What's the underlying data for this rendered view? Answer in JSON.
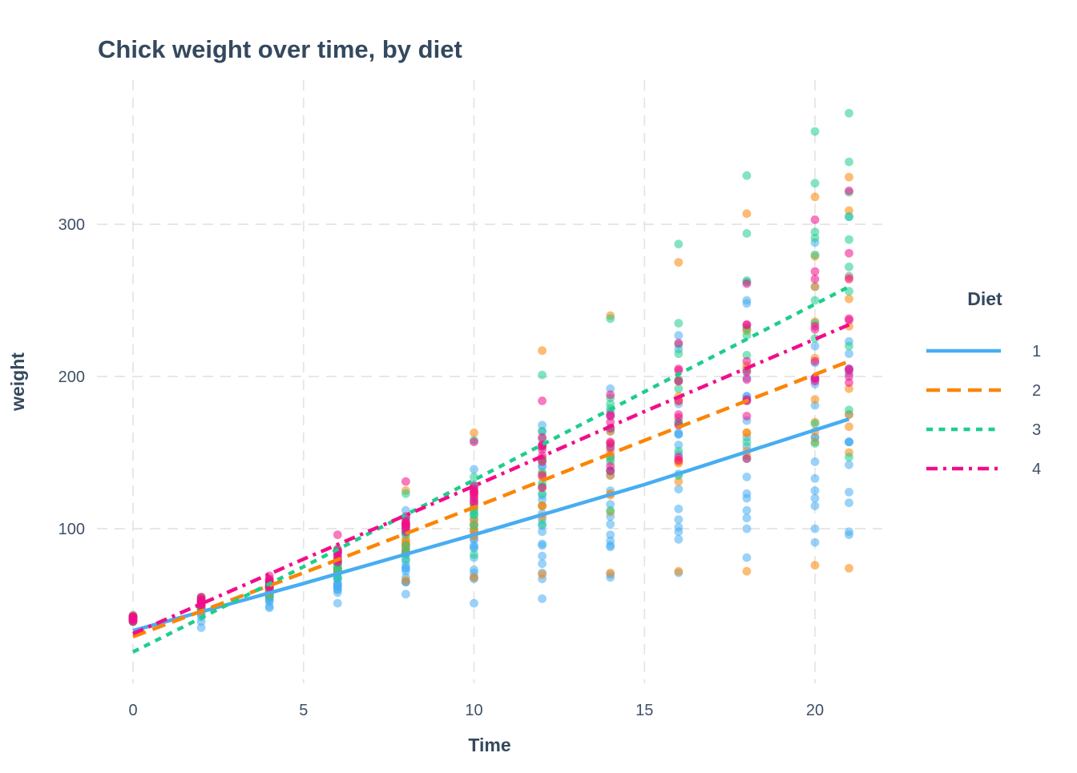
{
  "title": "Chick weight over time, by diet",
  "style": {
    "background": "#FFFFFF",
    "title_color": "#34495E",
    "axis_text_color": "#3F5165",
    "grid_color": "#E4E4E4"
  },
  "x_axis": {
    "label": "Time",
    "ticks": [
      0,
      5,
      10,
      15,
      20
    ]
  },
  "y_axis": {
    "label": "weight",
    "ticks": [
      100,
      200,
      300
    ]
  },
  "legend": {
    "title": "Diet",
    "position": "right"
  },
  "chart_data": {
    "type": "scatter",
    "title": "Chick weight over time, by diet",
    "xlabel": "Time",
    "ylabel": "weight",
    "xlim": [
      -1,
      22
    ],
    "ylim": [
      0,
      394
    ],
    "x_ticks": [
      0,
      5,
      10,
      15,
      20
    ],
    "y_ticks": [
      100,
      200,
      300
    ],
    "grid": "dashed major gridlines only",
    "legend_position": "right",
    "point_alpha": 0.55,
    "times": [
      0,
      2,
      4,
      6,
      8,
      10,
      12,
      14,
      16,
      18,
      20,
      21
    ],
    "series": [
      {
        "name": "1",
        "color": "#47ADF2",
        "linetype": "solid",
        "points_by_chick": [
          [
            42,
            51,
            59,
            64,
            76,
            93,
            106,
            125,
            149,
            171,
            199,
            205
          ],
          [
            40,
            49,
            58,
            72,
            84,
            103,
            122,
            138,
            162,
            187,
            209,
            215
          ],
          [
            43,
            39,
            55,
            67,
            84,
            99,
            115,
            138,
            163,
            187,
            198,
            202
          ],
          [
            42,
            49,
            56,
            67,
            74,
            87,
            102,
            108,
            136,
            154,
            160,
            157
          ],
          [
            41,
            42,
            48,
            60,
            79,
            106,
            141,
            164,
            197,
            199,
            220,
            223
          ],
          [
            41,
            49,
            59,
            74,
            97,
            124,
            141,
            148,
            155,
            160,
            160,
            157
          ],
          [
            41,
            49,
            57,
            71,
            89,
            112,
            146,
            174,
            218,
            250,
            288,
            305
          ],
          [
            42,
            50,
            61,
            71,
            84,
            93,
            110,
            116,
            126,
            134,
            125
          ],
          [
            42,
            51,
            59,
            68,
            85,
            96,
            90,
            92,
            93,
            100,
            100,
            98
          ],
          [
            41,
            44,
            52,
            63,
            74,
            81,
            89,
            96,
            101,
            112,
            120,
            124
          ],
          [
            43,
            51,
            63,
            84,
            112,
            139,
            168,
            177,
            182,
            184,
            181,
            175
          ],
          [
            41,
            49,
            56,
            62,
            72,
            88,
            119,
            135,
            162,
            185,
            195,
            205
          ],
          [
            41,
            48,
            53,
            60,
            65,
            67,
            71,
            70,
            71,
            81,
            91,
            96
          ],
          [
            41,
            49,
            62,
            79,
            101,
            128,
            164,
            192,
            227,
            248,
            259,
            266
          ],
          [
            41,
            49,
            56,
            64,
            68,
            68,
            67,
            68
          ],
          [
            41,
            45,
            49,
            51,
            57,
            51,
            54
          ],
          [
            42,
            51,
            61,
            72,
            83,
            89,
            98,
            103,
            113,
            123,
            133,
            142
          ],
          [
            39,
            35
          ],
          [
            43,
            48,
            55,
            62,
            65,
            71,
            82,
            88,
            106,
            120,
            144,
            157
          ],
          [
            41,
            47,
            54,
            58,
            65,
            73,
            77,
            89,
            98,
            107,
            115,
            117
          ]
        ]
      },
      {
        "name": "2",
        "color": "#FB8504",
        "linetype": "dashed",
        "points_by_chick": [
          [
            40,
            50,
            62,
            86,
            125,
            163,
            217,
            240,
            275,
            307,
            318,
            331
          ],
          [
            41,
            55,
            64,
            77,
            90,
            95,
            108,
            111,
            131,
            148,
            164,
            167
          ],
          [
            43,
            52,
            61,
            73,
            90,
            103,
            127,
            135,
            145,
            163,
            170,
            175
          ],
          [
            42,
            52,
            58,
            74,
            66,
            68,
            70,
            71,
            72,
            72,
            76,
            74
          ],
          [
            40,
            49,
            62,
            78,
            102,
            124,
            146,
            164,
            197,
            231,
            259,
            265
          ],
          [
            42,
            48,
            57,
            74,
            93,
            114,
            136,
            147,
            169,
            205,
            236,
            251
          ],
          [
            39,
            46,
            58,
            73,
            87,
            100,
            115,
            123,
            144,
            163,
            185,
            192
          ],
          [
            39,
            46,
            58,
            73,
            92,
            114,
            145,
            156,
            184,
            207,
            212,
            233
          ],
          [
            39,
            48,
            59,
            74,
            87,
            106,
            134,
            150,
            187,
            230,
            279,
            309
          ],
          [
            42,
            48,
            59,
            72,
            85,
            98,
            115,
            122,
            143,
            151,
            157,
            150
          ]
        ]
      },
      {
        "name": "3",
        "color": "#1FCD8D",
        "linetype": "dotted",
        "points_by_chick": [
          [
            42,
            53,
            62,
            73,
            85,
            102,
            123,
            138,
            170,
            204,
            235,
            256
          ],
          [
            41,
            49,
            65,
            82,
            107,
            129,
            159,
            179,
            221,
            263,
            291,
            305
          ],
          [
            39,
            50,
            63,
            77,
            96,
            111,
            137,
            144,
            151,
            146,
            156,
            147
          ],
          [
            41,
            49,
            63,
            85,
            107,
            134,
            164,
            186,
            235,
            294,
            327,
            341
          ],
          [
            41,
            53,
            64,
            87,
            123,
            158,
            201,
            238,
            287,
            332,
            361,
            373
          ],
          [
            39,
            48,
            61,
            76,
            98,
            116,
            145,
            166,
            198,
            227,
            225,
            220
          ],
          [
            41,
            48,
            56,
            68,
            80,
            83,
            103,
            112,
            135,
            157,
            169,
            178
          ],
          [
            41,
            49,
            61,
            74,
            98,
            109,
            128,
            154,
            192,
            232,
            280,
            290
          ],
          [
            42,
            50,
            61,
            78,
            89,
            109,
            130,
            146,
            170,
            214,
            250,
            272
          ],
          [
            41,
            55,
            66,
            79,
            101,
            120,
            154,
            182,
            215,
            262,
            295,
            321
          ]
        ]
      },
      {
        "name": "4",
        "color": "#F20D8B",
        "linetype": "dashdot",
        "points_by_chick": [
          [
            42,
            51,
            66,
            85,
            103,
            124,
            155,
            153,
            175,
            184,
            199,
            204
          ],
          [
            42,
            49,
            63,
            84,
            103,
            126,
            160,
            174,
            204,
            234,
            269,
            281
          ],
          [
            42,
            55,
            69,
            96,
            131,
            157,
            184,
            188,
            197,
            198,
            199,
            200
          ],
          [
            42,
            51,
            65,
            86,
            103,
            118,
            127,
            138,
            145,
            146
          ],
          [
            41,
            50,
            61,
            78,
            98,
            117,
            135,
            141,
            147,
            174,
            197,
            196
          ],
          [
            40,
            52,
            62,
            82,
            101,
            120,
            144,
            156,
            173,
            210,
            231,
            238
          ],
          [
            41,
            53,
            66,
            79,
            100,
            123,
            148,
            157,
            168,
            185,
            210,
            205
          ],
          [
            39,
            50,
            62,
            80,
            104,
            125,
            154,
            170,
            222,
            261,
            303,
            322
          ],
          [
            40,
            53,
            64,
            85,
            108,
            128,
            152,
            166,
            184,
            203,
            233,
            237
          ],
          [
            41,
            54,
            67,
            84,
            105,
            122,
            155,
            175,
            205,
            234,
            264,
            264
          ]
        ]
      }
    ],
    "smooth_trend": [
      {
        "diet": "1",
        "x": [
          0,
          5,
          10,
          15,
          21
        ],
        "y": [
          33,
          64,
          96,
          129,
          172
        ]
      },
      {
        "diet": "2",
        "x": [
          0,
          5,
          10,
          15,
          21
        ],
        "y": [
          29,
          71,
          114,
          158,
          210
        ]
      },
      {
        "diet": "3",
        "x": [
          0,
          5,
          10,
          15,
          21
        ],
        "y": [
          19,
          75,
          132,
          190,
          259
        ]
      },
      {
        "diet": "4",
        "x": [
          0,
          5,
          10,
          15,
          21
        ],
        "y": [
          31,
          80,
          128,
          177,
          234
        ]
      }
    ]
  }
}
